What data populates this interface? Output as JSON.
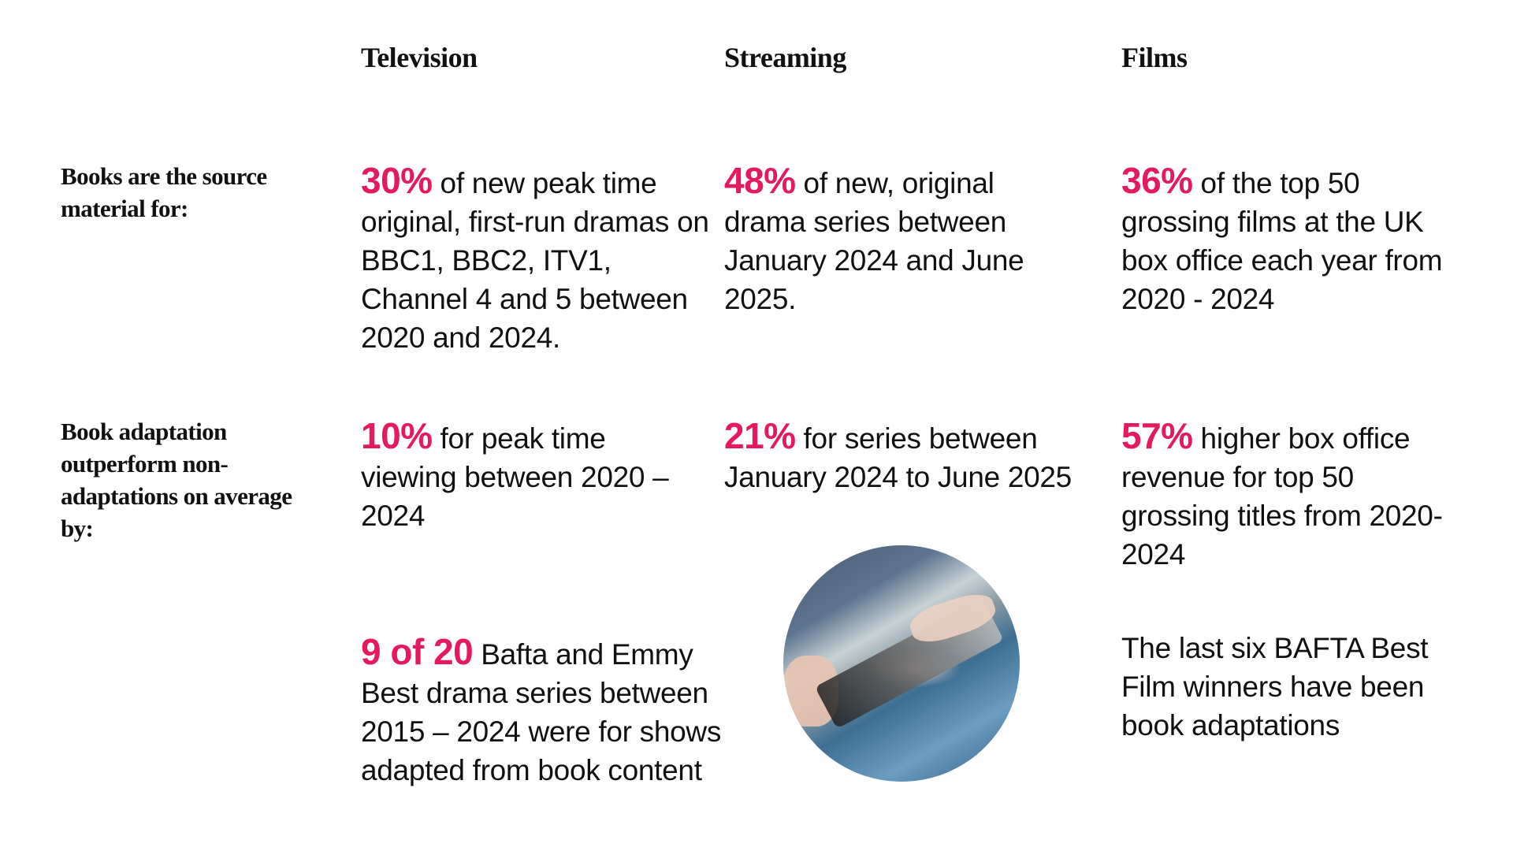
{
  "columns": {
    "television": "Television",
    "streaming": "Streaming",
    "films": "Films"
  },
  "rows": {
    "source_label": "Books are the source material for:",
    "outperform_label": "Book adaptation outperform non-adaptations on average by:"
  },
  "accent_color": "#e5195e",
  "cells": {
    "tv_source": {
      "stat": "30%",
      "text": " of new peak time original, first-run dramas on BBC1, BBC2, ITV1, Channel 4 and 5 between 2020 and 2024."
    },
    "streaming_source": {
      "stat": "48%",
      "text": " of new, original drama series between January 2024 and June 2025."
    },
    "films_source": {
      "stat": "36%",
      "text": " of the top 50 grossing films at the UK box office each year from 2020 - 2024"
    },
    "tv_outperform": {
      "stat": "10%",
      "text": " for peak time viewing between 2020 – 2024"
    },
    "streaming_outperform": {
      "stat": "21%",
      "text": " for series between January 2024 to June 2025"
    },
    "films_outperform": {
      "stat": "57%",
      "text": " higher box office revenue for top 50 grossing titles from 2020- 2024"
    },
    "tv_awards": {
      "stat": "9 of 20",
      "text": " Bafta and Emmy Best drama series between 2015 – 2024 were for shows adapted from book content"
    },
    "films_awards": {
      "text": "The last six BAFTA Best Film winners have been book adaptations"
    }
  },
  "image": {
    "subject": "person-using-tablet-photo"
  }
}
